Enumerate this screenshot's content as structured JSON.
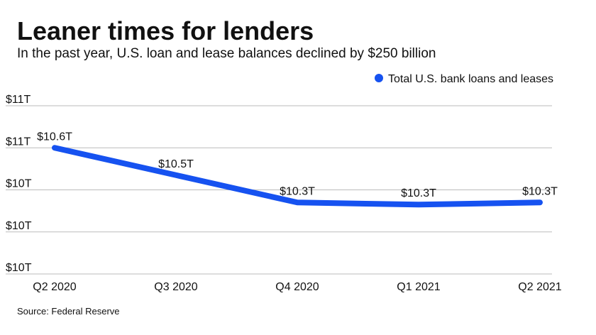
{
  "chart_data": {
    "type": "line",
    "title": "Leaner times for lenders",
    "subtitle": "In the past year, U.S. loan and lease balances declined by $250 billion",
    "source": "Source: Federal Reserve",
    "categories": [
      "Q2 2020",
      "Q3 2020",
      "Q4 2020",
      "Q1 2021",
      "Q2 2021"
    ],
    "series": [
      {
        "name": "Total U.S. bank loans and leases",
        "color": "#1652f0",
        "values": [
          10.6,
          10.47,
          10.34,
          10.33,
          10.34
        ],
        "value_labels": [
          "$10.6T",
          "$10.5T",
          "$10.3T",
          "$10.3T",
          "$10.3T"
        ]
      }
    ],
    "ylim": [
      10.0,
      10.8
    ],
    "yticks": [
      {
        "value": 10.0,
        "label": "$10T"
      },
      {
        "value": 10.2,
        "label": "$10T"
      },
      {
        "value": 10.4,
        "label": "$10T"
      },
      {
        "value": 10.6,
        "label": "$11T"
      },
      {
        "value": 10.8,
        "label": "$11T"
      }
    ],
    "grid": true,
    "legend": "top-right"
  }
}
